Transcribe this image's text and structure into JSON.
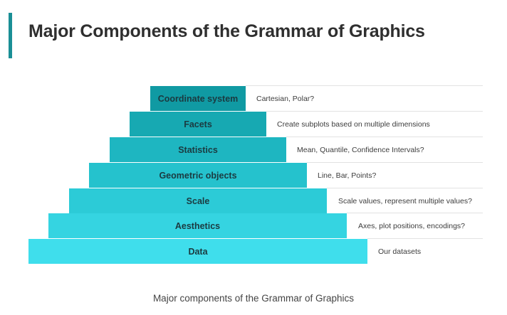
{
  "title": "Major Components of the Grammar of Graphics",
  "caption": "Major components of the Grammar of Graphics",
  "colors": {
    "accent": "#1a8f96",
    "text_dark": "#1b3a40"
  },
  "levels": [
    {
      "label": "Coordinate system",
      "description": "Cartesian, Polar?",
      "color": "#109aa3"
    },
    {
      "label": "Facets",
      "description": "Create subplots based on multiple dimensions",
      "color": "#17a9b2"
    },
    {
      "label": "Statistics",
      "description": "Mean, Quantile, Confidence Intervals?",
      "color": "#1eb6c1"
    },
    {
      "label": "Geometric objects",
      "description": "Line, Bar, Points?",
      "color": "#25c2cd"
    },
    {
      "label": "Scale",
      "description": "Scale values, represent multiple values?",
      "color": "#2ccbd7"
    },
    {
      "label": "Aesthetics",
      "description": "Axes, plot positions, encodings?",
      "color": "#35d4e1"
    },
    {
      "label": "Data",
      "description": "Our datasets",
      "color": "#3fdeec"
    }
  ]
}
